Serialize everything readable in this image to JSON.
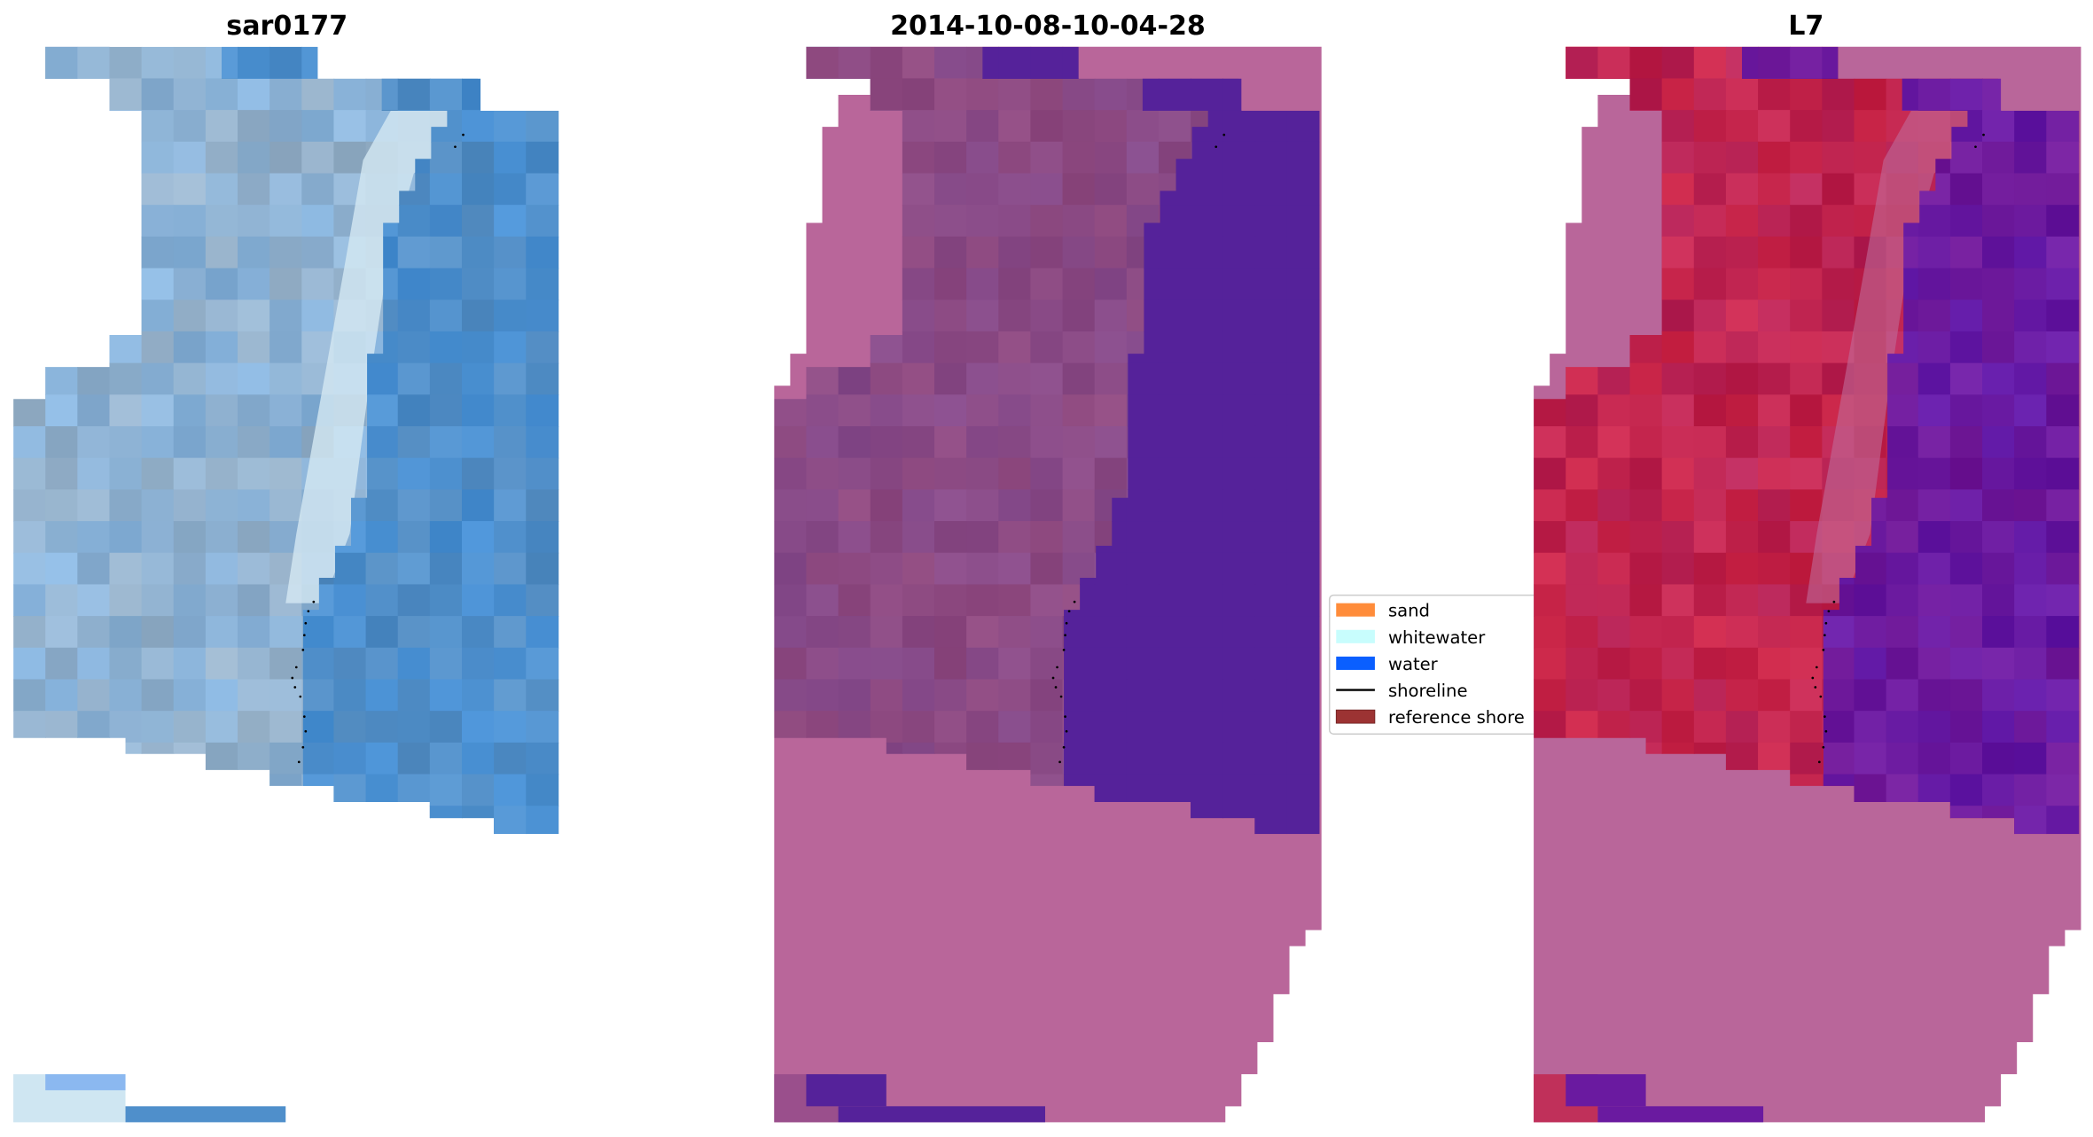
{
  "panels": [
    {
      "title": "sar0177",
      "colors": {
        "land": "#8fb2d2",
        "water": "#4f8fcb",
        "whitewater": "#d4e8f2",
        "outside": null,
        "corner": "#a9c3dc"
      }
    },
    {
      "title": "2014-10-08-10-04-28",
      "colors": {
        "land": "#8a4a85",
        "water": "#55229a",
        "whitewater": null,
        "outside": "#b9669a",
        "corner": "#a9c3dc"
      }
    },
    {
      "title": "L7",
      "colors": {
        "land": "#c0244f",
        "water": "#6a1aa0",
        "whitewater": "#c06a9a",
        "outside": "#b9669a",
        "corner": "#ff4a4a"
      }
    }
  ],
  "legend": {
    "items": [
      {
        "label": "sand",
        "color": "#ff8c3a",
        "kind": "patch"
      },
      {
        "label": "whitewater",
        "color": "#c8fdfd",
        "kind": "patch"
      },
      {
        "label": "water",
        "color": "#0a5fff",
        "kind": "patch"
      },
      {
        "label": "shoreline",
        "color": "#000000",
        "kind": "line"
      },
      {
        "label": "reference shore",
        "color": "#9c3333",
        "kind": "patch"
      }
    ]
  }
}
